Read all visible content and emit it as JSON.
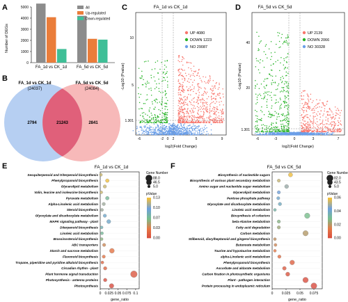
{
  "panel_letters": {
    "A": "A",
    "B": "B",
    "C": "C",
    "D": "D",
    "E": "E",
    "F": "F"
  },
  "colors": {
    "all": "#8c8c8c",
    "up": "#ea7d3a",
    "down": "#3fbf97",
    "vol_up": "#f8766d",
    "vol_down": "#27b327",
    "vol_no": "#6b9fe8",
    "venn_left": "#a9c7f0",
    "venn_right": "#f5a8a8",
    "venn_mid": "#e0607a"
  },
  "chart_data": [
    {
      "type": "bar",
      "ylabel": "Number of DEGs",
      "ylim": [
        0,
        5000
      ],
      "yticks": [
        "0",
        "1000",
        "2000",
        "3000",
        "4000",
        "5000"
      ],
      "categories": [
        "FA_1d vs CK_1d",
        "FA_5d vs CK_5d"
      ],
      "series": [
        {
          "name": "All",
          "values": [
            5303,
            4205
          ]
        },
        {
          "name": "Up-regulated",
          "values": [
            4080,
            2139
          ]
        },
        {
          "name": "Down-regulated",
          "values": [
            1223,
            2066
          ]
        }
      ]
    },
    {
      "type": "venn",
      "sets": [
        {
          "name": "FA_1d vs CK_1d",
          "total": "(24037)"
        },
        {
          "name": "FA_5d vs CK_5d",
          "total": "(24084)"
        }
      ],
      "regions": {
        "left_only": "2794",
        "both": "21243",
        "right_only": "2841"
      }
    },
    {
      "type": "scatter",
      "title": "FA_1d vs CK_1d",
      "xlabel": "log2(Fold Change)",
      "ylabel": "-Log10 (Pvalue)",
      "xticks": [
        "-6",
        "-2",
        "0",
        "2",
        "5",
        "9"
      ],
      "yticks": [
        "1.301",
        "5",
        "10"
      ],
      "legend": [
        {
          "label": "UP 4080"
        },
        {
          "label": "DOWN 1223"
        },
        {
          "label": "NO 29087"
        }
      ]
    },
    {
      "type": "scatter",
      "title": "FA_5d vs CK_5d",
      "xlabel": "log2(Fold Change)",
      "ylabel": "-Log10 (Pvalue)",
      "xticks": [
        "-6",
        "-3",
        "0",
        "3",
        "7"
      ],
      "yticks": [
        "1.301",
        "20",
        "40"
      ],
      "legend": [
        {
          "label": "UP 2139"
        },
        {
          "label": "DOWN 2066"
        },
        {
          "label": "NO 30328"
        }
      ]
    },
    {
      "type": "scatter",
      "title": "FA_1d vs CK_1d",
      "xlabel": "gene_ratio",
      "xticks": [
        "0",
        "0.025",
        "0.05",
        "0.075",
        "0.1"
      ],
      "xlim": [
        0,
        0.11
      ],
      "size_legend": {
        "title": "Gene Number",
        "labels": [
          "88.0",
          "46.5",
          "5.0"
        ]
      },
      "color_legend": {
        "title": "pValue",
        "labels": [
          "0.13",
          "0.10",
          "0.07",
          "0.03",
          "0.00"
        ]
      },
      "pathways": [
        {
          "name": "Sesquiterpenoid and triterpenoid biosynthesis",
          "ratio": 0.002,
          "p": 0.12,
          "n": 6
        },
        {
          "name": "Phenylpropanoid biosynthesis",
          "ratio": 0.02,
          "p": 0.13,
          "n": 14
        },
        {
          "name": "Glycerolipid metabolism",
          "ratio": 0.013,
          "p": 0.12,
          "n": 10
        },
        {
          "name": "Valin, leucine and isoleucine biosynthesis",
          "ratio": 0.003,
          "p": 0.12,
          "n": 5
        },
        {
          "name": "Pyruvate metabolism",
          "ratio": 0.02,
          "p": 0.07,
          "n": 14
        },
        {
          "name": "Alpha-Linolenic acid metabolism",
          "ratio": 0.01,
          "p": 0.11,
          "n": 9
        },
        {
          "name": "Steroid biosynthesis",
          "ratio": 0.005,
          "p": 0.11,
          "n": 6
        },
        {
          "name": "Glyoxylate and dicarboxylate metabolism",
          "ratio": 0.013,
          "p": 0.09,
          "n": 10
        },
        {
          "name": "MAPK signaling pathway - plant",
          "ratio": 0.024,
          "p": 0.09,
          "n": 20
        },
        {
          "name": "Diterpenoid biosynthesis",
          "ratio": 0.004,
          "p": 0.08,
          "n": 5
        },
        {
          "name": "Linoleic acid metabolism",
          "ratio": 0.005,
          "p": 0.07,
          "n": 6
        },
        {
          "name": "Brassinosteroid biosynthesis",
          "ratio": 0.004,
          "p": 0.06,
          "n": 5
        },
        {
          "name": "ABC transporters",
          "ratio": 0.011,
          "p": 0.04,
          "n": 9
        },
        {
          "name": "Starch and sucrose metabolism",
          "ratio": 0.033,
          "p": 0.03,
          "n": 35
        },
        {
          "name": "Flavonoid biosynthesis",
          "ratio": 0.01,
          "p": 0.03,
          "n": 9
        },
        {
          "name": "Tropane, piperidine and pyridine alkaloid biosynthesis",
          "ratio": 0.006,
          "p": 0.02,
          "n": 6
        },
        {
          "name": "Circadian rhythm - plant",
          "ratio": 0.014,
          "p": 0.02,
          "n": 11
        },
        {
          "name": "Plant hormone signal transduction",
          "ratio": 0.095,
          "p": 0.01,
          "n": 88
        },
        {
          "name": "Photosynthesis - antenna proteins",
          "ratio": 0.014,
          "p": 0.005,
          "n": 12
        },
        {
          "name": "Photosynthesis",
          "ratio": 0.032,
          "p": 0.002,
          "n": 30
        }
      ]
    },
    {
      "type": "scatter",
      "title": "FA_5d vs CK_5d",
      "xlabel": "gene_ratio",
      "xticks": [
        "0",
        "0.025",
        "0.05",
        "0.075"
      ],
      "xlim": [
        0,
        0.09
      ],
      "size_legend": {
        "title": "Gene Number",
        "labels": [
          "82.0",
          "43.5",
          "5.0"
        ]
      },
      "color_legend": {
        "title": "pValue",
        "labels": [
          "0.06",
          "0.04",
          "0.02",
          "0.00"
        ]
      },
      "pathways": [
        {
          "name": "Biosynthesis of nucleotide sugars",
          "ratio": 0.033,
          "p": 0.06,
          "n": 22
        },
        {
          "name": "Biosynthesis of various plant secondary metabolism",
          "ratio": 0.012,
          "p": 0.055,
          "n": 8
        },
        {
          "name": "Amino sugar and nucleotide sugar metabolism",
          "ratio": 0.026,
          "p": 0.05,
          "n": 18
        },
        {
          "name": "Glycerolipid metabolism",
          "ratio": 0.012,
          "p": 0.045,
          "n": 9
        },
        {
          "name": "Pentose phosphate pathway",
          "ratio": 0.011,
          "p": 0.042,
          "n": 8
        },
        {
          "name": "Glyoxylate and dicarboxylate metabolism",
          "ratio": 0.014,
          "p": 0.04,
          "n": 10
        },
        {
          "name": "Linoleic acid metabolism",
          "ratio": 0.005,
          "p": 0.035,
          "n": 5
        },
        {
          "name": "Biosynthesis of cofactors",
          "ratio": 0.063,
          "p": 0.03,
          "n": 45
        },
        {
          "name": "beta-Alanine metabolism",
          "ratio": 0.012,
          "p": 0.028,
          "n": 9
        },
        {
          "name": "Fatty acid degradation",
          "ratio": 0.012,
          "p": 0.025,
          "n": 9
        },
        {
          "name": "Carbon metabolism",
          "ratio": 0.06,
          "p": 0.022,
          "n": 45
        },
        {
          "name": "Stilbenoid, diarylheptanoid and gingerol biosynthesis",
          "ratio": 0.005,
          "p": 0.02,
          "n": 5
        },
        {
          "name": "Butanoate metabolism",
          "ratio": 0.006,
          "p": 0.018,
          "n": 6
        },
        {
          "name": "Taurine and hypotaurine metabolism",
          "ratio": 0.005,
          "p": 0.015,
          "n": 5
        },
        {
          "name": "alpha-Linolenic acid metabolism",
          "ratio": 0.013,
          "p": 0.012,
          "n": 10
        },
        {
          "name": "Phenylpropanoid biosynthesis",
          "ratio": 0.036,
          "p": 0.008,
          "n": 30
        },
        {
          "name": "Ascorbate and aldarate metabolism",
          "ratio": 0.022,
          "p": 0.006,
          "n": 15
        },
        {
          "name": "Carbon fixation in photosynthetic organisms",
          "ratio": 0.028,
          "p": 0.004,
          "n": 20
        },
        {
          "name": "Plant - pathogen interaction",
          "ratio": 0.06,
          "p": 0.002,
          "n": 48
        },
        {
          "name": "Protein processing in endoplasmic reticulum",
          "ratio": 0.075,
          "p": 0.001,
          "n": 60
        }
      ]
    }
  ]
}
